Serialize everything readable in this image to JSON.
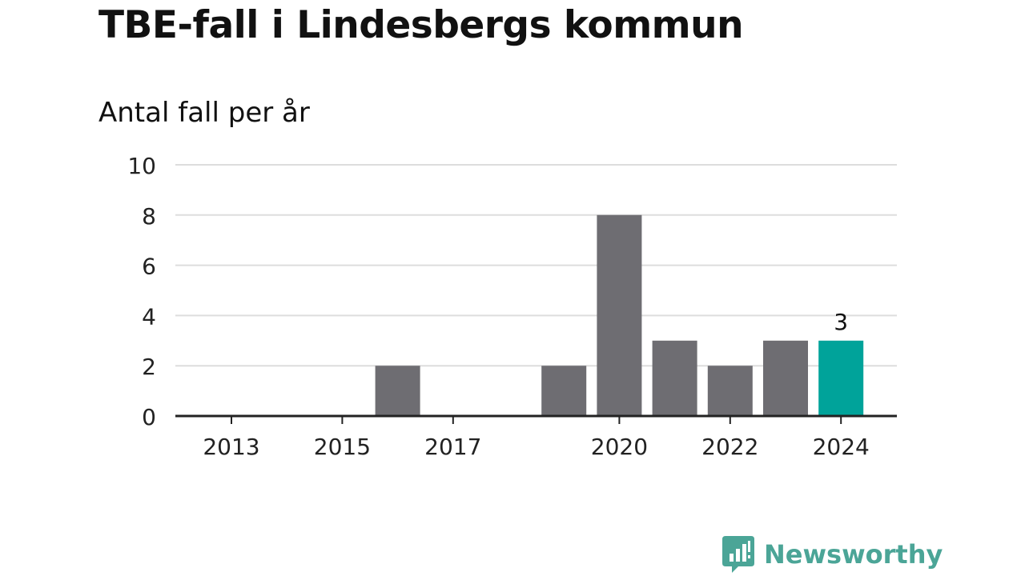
{
  "title": "TBE-fall i Lindesbergs kommun",
  "subtitle": "Antal fall per år",
  "brand": "Newsworthy",
  "colors": {
    "bar": "#6e6d72",
    "highlight": "#00a39a",
    "grid": "#dddddd",
    "axis": "#222222",
    "text": "#111111",
    "brand": "#4ba597"
  },
  "chart_data": {
    "type": "bar",
    "title": "TBE-fall i Lindesbergs kommun",
    "subtitle": "Antal fall per år",
    "categories": [
      "2013",
      "2014",
      "2015",
      "2016",
      "2017",
      "2018",
      "2019",
      "2020",
      "2021",
      "2022",
      "2023",
      "2024"
    ],
    "values": [
      0,
      0,
      0,
      2,
      0,
      0,
      2,
      8,
      3,
      2,
      3,
      3
    ],
    "highlight_category": "2024",
    "highlight_label": "3",
    "x_tick_labels": [
      "2013",
      "2015",
      "2017",
      "2020",
      "2022",
      "2024"
    ],
    "y_ticks": [
      0,
      2,
      4,
      6,
      8,
      10
    ],
    "ylim": [
      0,
      10
    ],
    "xlabel": "",
    "ylabel": "",
    "grid": true,
    "legend": "none"
  }
}
